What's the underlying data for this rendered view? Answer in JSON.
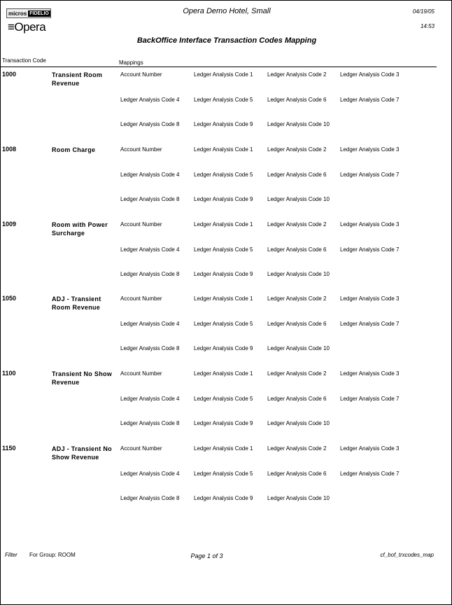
{
  "header": {
    "logo_micros": "micros",
    "logo_fidelio": "FIDELIO",
    "logo_opera": "Opera",
    "hotel": "Opera Demo Hotel, Small",
    "date": "04/19/05",
    "time": "14:53",
    "title": "BackOffice Interface Transaction Codes Mapping"
  },
  "columns": {
    "code": "Transaction Code",
    "mappings": "Mappings"
  },
  "mapping_rows": [
    [
      "Account Number",
      "Ledger Analysis Code 1",
      "Ledger Analysis Code 2",
      "Ledger Analysis Code 3"
    ],
    [
      "Ledger Analysis Code 4",
      "Ledger Analysis Code 5",
      "Ledger Analysis Code 6",
      "Ledger Analysis Code 7"
    ],
    [
      "Ledger Analysis Code 8",
      "Ledger Analysis Code 9",
      "Ledger Analysis Code 10"
    ]
  ],
  "groups": [
    {
      "code": "1000",
      "desc": "Transient Room Revenue"
    },
    {
      "code": "1008",
      "desc": "Room Charge"
    },
    {
      "code": "1009",
      "desc": "Room  with Power Surcharge"
    },
    {
      "code": "1050",
      "desc": "ADJ - Transient Room Revenue"
    },
    {
      "code": "1100",
      "desc": "Transient No Show Revenue"
    },
    {
      "code": "1150",
      "desc": "ADJ - Transient No Show Revenue"
    }
  ],
  "footer": {
    "filter": "Filter",
    "group": "For Group:  ROOM",
    "page": "Page 1 of 3",
    "report": "cf_bof_trxcodes_map"
  }
}
